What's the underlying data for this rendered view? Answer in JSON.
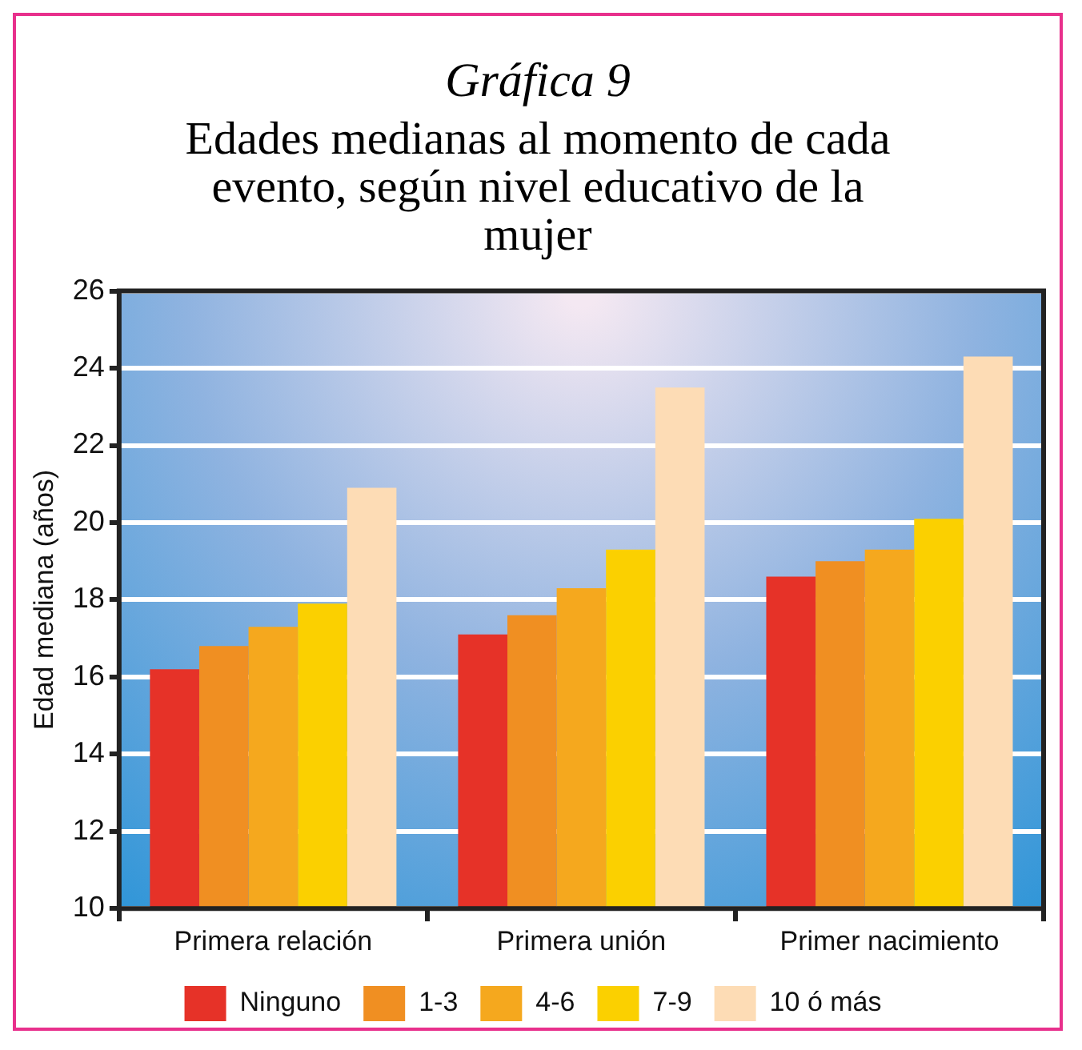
{
  "chart_data": {
    "type": "bar",
    "title": "Gráfica 9",
    "subtitle": "Edades medianas al momento de cada evento, según nivel educativo de la mujer",
    "ylabel": "Edad mediana (años)",
    "categories": [
      "Primera relación",
      "Primera unión",
      "Primer nacimiento"
    ],
    "series": [
      {
        "name": "Ninguno",
        "color": "#e63228",
        "values": [
          16.2,
          17.1,
          18.6
        ]
      },
      {
        "name": "1-3",
        "color": "#f08f22",
        "values": [
          16.8,
          17.6,
          19.0
        ]
      },
      {
        "name": "4-6",
        "color": "#f5a81e",
        "values": [
          17.3,
          18.3,
          19.3
        ]
      },
      {
        "name": "7-9",
        "color": "#fbd000",
        "values": [
          17.9,
          19.3,
          20.1
        ]
      },
      {
        "name": "10 ó más",
        "color": "#fddcb5",
        "values": [
          20.9,
          23.5,
          24.3
        ]
      }
    ],
    "ylim": [
      10,
      26
    ],
    "yticks": [
      10,
      12,
      14,
      16,
      18,
      20,
      22,
      24,
      26
    ],
    "grid": "y",
    "legend": "bottom"
  }
}
